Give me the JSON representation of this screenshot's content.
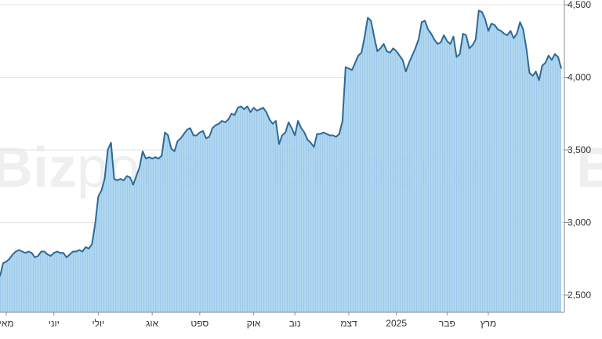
{
  "watermark": {
    "bold": "Biz",
    "light": "portal"
  },
  "chart_data": {
    "type": "area",
    "title": "",
    "xlabel": "",
    "ylabel": "",
    "ylim": [
      2350,
      4500
    ],
    "grid": true,
    "y_ticks": [
      {
        "value": 4500,
        "label": "4,500"
      },
      {
        "value": 4000,
        "label": "4,000"
      },
      {
        "value": 3500,
        "label": "3,500"
      },
      {
        "value": 3000,
        "label": "3,000"
      },
      {
        "value": 2500,
        "label": "2,500"
      }
    ],
    "x_ticks": [
      {
        "idx": 2,
        "label": "מאי"
      },
      {
        "idx": 17,
        "label": "יוני"
      },
      {
        "idx": 31,
        "label": "יולי"
      },
      {
        "idx": 48,
        "label": "אוג"
      },
      {
        "idx": 63,
        "label": "ספט"
      },
      {
        "idx": 80,
        "label": "אוק"
      },
      {
        "idx": 93,
        "label": "נוב"
      },
      {
        "idx": 110,
        "label": "דצמ"
      },
      {
        "idx": 125,
        "label": "2025"
      },
      {
        "idx": 141,
        "label": "פבר"
      },
      {
        "idx": 154,
        "label": "מרץ"
      }
    ],
    "colors": {
      "line": "#2d6a99",
      "fill": "#a9d4f0",
      "fill_stripe": "#97c6e6",
      "grid": "#e3e3e3"
    },
    "series": [
      {
        "values": [
          2630,
          2720,
          2730,
          2750,
          2780,
          2800,
          2810,
          2800,
          2790,
          2800,
          2790,
          2760,
          2770,
          2800,
          2800,
          2780,
          2770,
          2790,
          2800,
          2790,
          2790,
          2760,
          2780,
          2800,
          2800,
          2810,
          2800,
          2830,
          2820,
          2850,
          2990,
          3180,
          3220,
          3300,
          3500,
          3550,
          3300,
          3290,
          3300,
          3290,
          3320,
          3310,
          3260,
          3320,
          3380,
          3490,
          3440,
          3450,
          3440,
          3450,
          3440,
          3460,
          3620,
          3600,
          3510,
          3490,
          3560,
          3580,
          3610,
          3640,
          3650,
          3600,
          3600,
          3620,
          3630,
          3580,
          3590,
          3650,
          3670,
          3680,
          3700,
          3690,
          3710,
          3750,
          3740,
          3790,
          3800,
          3780,
          3800,
          3760,
          3790,
          3770,
          3780,
          3790,
          3760,
          3710,
          3680,
          3700,
          3540,
          3600,
          3620,
          3690,
          3650,
          3600,
          3700,
          3650,
          3620,
          3570,
          3550,
          3520,
          3610,
          3610,
          3620,
          3610,
          3600,
          3600,
          3590,
          3610,
          3700,
          4070,
          4060,
          4050,
          4100,
          4150,
          4170,
          4280,
          4410,
          4390,
          4280,
          4180,
          4200,
          4230,
          4180,
          4170,
          4200,
          4180,
          4150,
          4120,
          4040,
          4100,
          4150,
          4200,
          4260,
          4380,
          4390,
          4330,
          4300,
          4260,
          4230,
          4240,
          4290,
          4250,
          4230,
          4280,
          4140,
          4160,
          4300,
          4290,
          4200,
          4220,
          4260,
          4460,
          4450,
          4400,
          4320,
          4370,
          4360,
          4330,
          4320,
          4300,
          4290,
          4320,
          4270,
          4300,
          4380,
          4330,
          4200,
          4030,
          4010,
          4040,
          3980,
          4080,
          4100,
          4150,
          4120,
          4160,
          4140,
          4060
        ]
      }
    ]
  }
}
